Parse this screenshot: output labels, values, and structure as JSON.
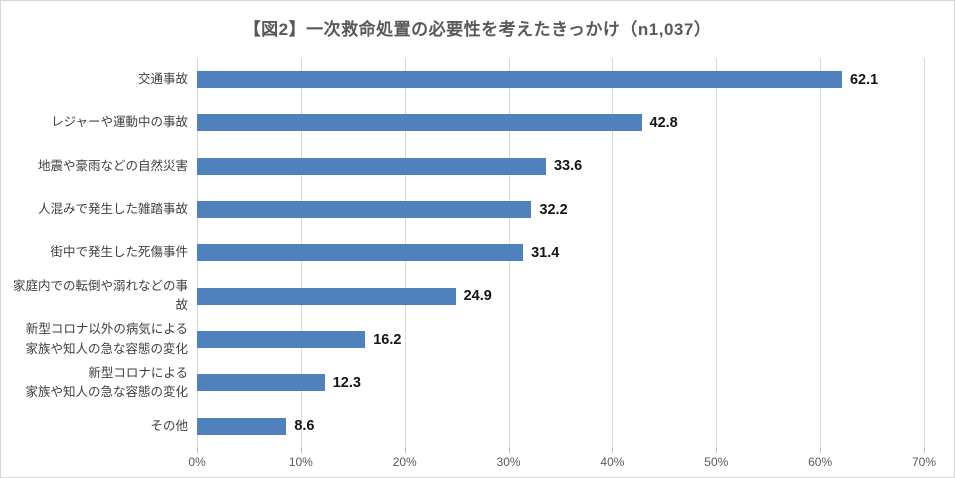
{
  "chart_data": {
    "type": "bar",
    "orientation": "horizontal",
    "title": "【図2】一次救命処置の必要性を考えたきっかけ（n1,037）",
    "categories": [
      "交通事故",
      "レジャーや運動中の事故",
      "地震や豪雨などの自然災害",
      "人混みで発生した雑踏事故",
      "街中で発生した死傷事件",
      "家庭内での転倒や溺れなどの事故",
      "新型コロナ以外の病気による\n家族や知人の急な容態の変化",
      "新型コロナによる\n家族や知人の急な容態の変化",
      "その他"
    ],
    "values": [
      62.1,
      42.8,
      33.6,
      32.2,
      31.4,
      24.9,
      16.2,
      12.3,
      8.6
    ],
    "value_labels": [
      "62.1",
      "42.8",
      "33.6",
      "32.2",
      "31.4",
      "24.9",
      "16.2",
      "12.3",
      "8.6"
    ],
    "xlabel": "",
    "ylabel": "",
    "xlim": [
      0,
      70
    ],
    "x_tick_labels": [
      "0%",
      "10%",
      "20%",
      "30%",
      "40%",
      "50%",
      "60%",
      "70%"
    ],
    "grid": true,
    "legend": false
  },
  "colors": {
    "bar": "#4F81BD",
    "gridline": "#D9D9D9",
    "tick": "#BFBFBF",
    "title_text": "#595959",
    "category_text": "#404040",
    "axis_text": "#595959",
    "value_text": "#151515",
    "frame_border": "#D6D6D6",
    "background": "#FFFFFF"
  }
}
